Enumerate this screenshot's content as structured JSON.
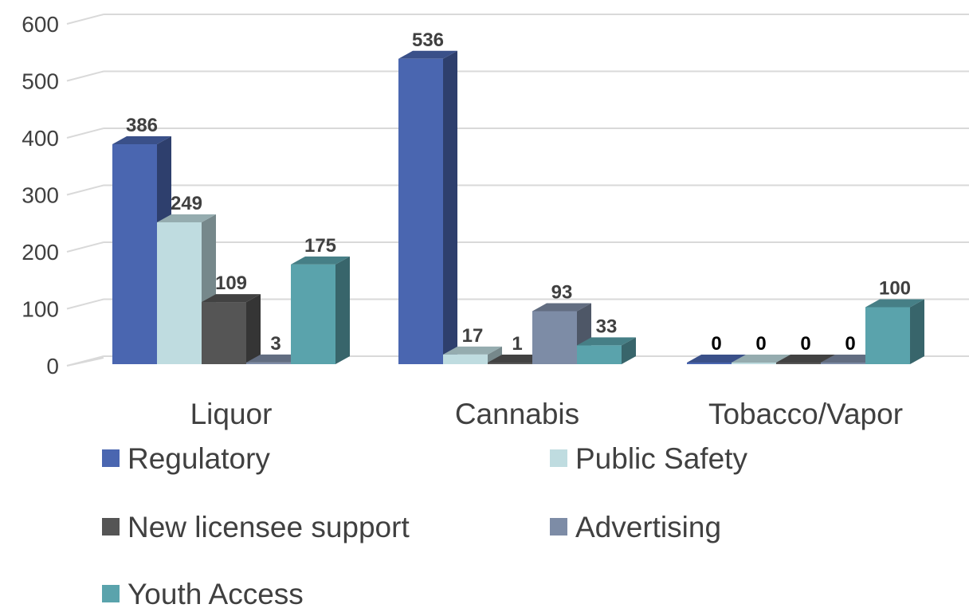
{
  "chart_data": {
    "type": "bar",
    "categories": [
      "Liquor",
      "Cannabis",
      "Tobacco/Vapor"
    ],
    "series": [
      {
        "name": "Regulatory",
        "values": [
          386,
          536,
          0
        ],
        "color": "#4A66B0"
      },
      {
        "name": "Public Safety",
        "values": [
          249,
          17,
          0
        ],
        "color": "#BFDCE0"
      },
      {
        "name": "New licensee support",
        "values": [
          109,
          1,
          0
        ],
        "color": "#555555"
      },
      {
        "name": "Advertising",
        "values": [
          3,
          93,
          0
        ],
        "color": "#7D8CA6"
      },
      {
        "name": "Youth Access",
        "values": [
          175,
          33,
          100
        ],
        "color": "#5AA3AC"
      }
    ],
    "ylim": [
      0,
      600
    ],
    "yticks": [
      0,
      100,
      200,
      300,
      400,
      500,
      600
    ],
    "grid": true,
    "legend": "bottom",
    "bar_style": "3d"
  }
}
